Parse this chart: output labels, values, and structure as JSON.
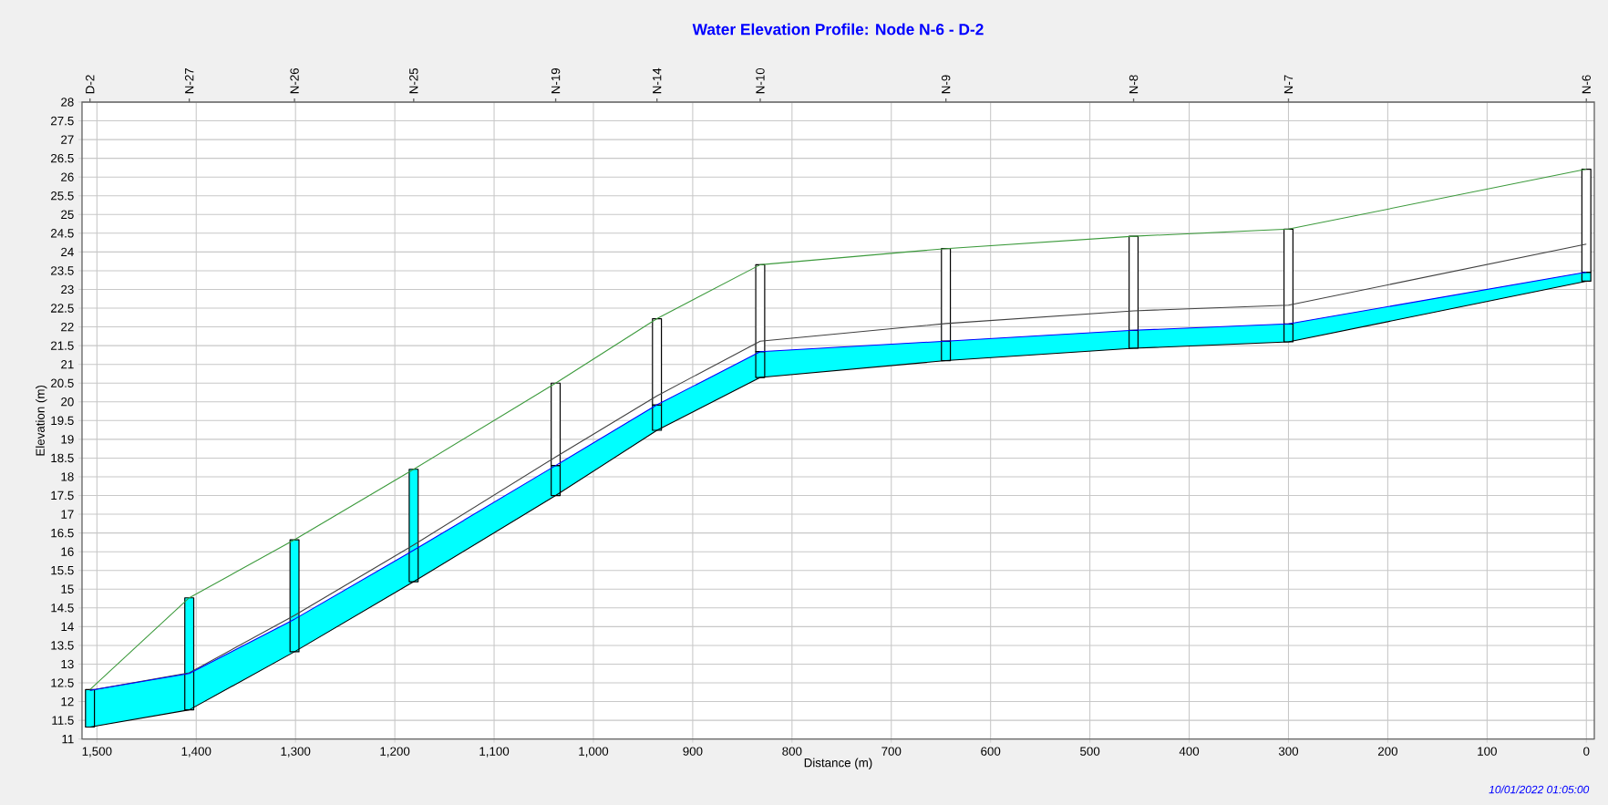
{
  "chart_data": {
    "type": "line",
    "title": "Water Elevation Profile: Node N-6 - D-2",
    "xlabel": "Distance (m)",
    "ylabel": "Elevation (m)",
    "x": [
      1507,
      1407,
      1301,
      1181,
      1038,
      936,
      832,
      645,
      456,
      300,
      0
    ],
    "series": [
      {
        "color": "#3c9a3c",
        "values": [
          12.32,
          14.77,
          16.32,
          18.2,
          20.5,
          22.22,
          23.66,
          24.09,
          24.42,
          24.61,
          26.21
        ]
      },
      {
        "color": "#404040",
        "values": [
          12.3,
          12.77,
          14.3,
          16.18,
          18.53,
          20.16,
          21.62,
          22.09,
          22.43,
          22.58,
          24.21
        ]
      },
      {
        "color": "#0000ff",
        "values": [
          12.3,
          12.75,
          14.2,
          16.04,
          18.3,
          19.92,
          21.34,
          21.62,
          21.91,
          22.08,
          23.46
        ],
        "upper": [
          12.3,
          12.75,
          14.2,
          16.04,
          18.3,
          19.92,
          21.34,
          21.62,
          21.91,
          22.08,
          23.46
        ],
        "lower": [
          11.32,
          11.78,
          13.33,
          15.2,
          17.5,
          19.24,
          20.65,
          21.1,
          21.43,
          21.6,
          23.22
        ]
      },
      {
        "color": "#000000",
        "values": [
          11.32,
          11.78,
          13.33,
          15.2,
          17.5,
          19.24,
          20.65,
          21.1,
          21.43,
          21.6,
          23.22
        ]
      },
      {
        "type": "bar",
        "color": "#00ffff",
        "base": [
          11.32,
          11.78,
          13.33,
          15.2,
          17.5,
          19.24,
          20.65,
          21.1,
          21.43,
          21.6,
          23.22
        ],
        "values": [
          1.0,
          2.99,
          2.99,
          3.0,
          0.8,
          0.68,
          0.69,
          0.52,
          0.48,
          0.48,
          0.24
        ]
      },
      {
        "type": "bar",
        "color": "#ffffff",
        "base": [
          null,
          null,
          null,
          null,
          18.3,
          19.92,
          21.34,
          21.62,
          21.91,
          22.08,
          23.46
        ],
        "values": [
          null,
          null,
          null,
          null,
          2.2,
          2.3,
          2.32,
          2.47,
          2.51,
          2.53,
          2.75
        ]
      }
    ],
    "xlim": [
      1515,
      -8
    ],
    "ylim": [
      11,
      28
    ],
    "xticks": [
      {
        "value": 1500,
        "label": "1,500"
      },
      {
        "value": 1400,
        "label": "1,400"
      },
      {
        "value": 1300,
        "label": "1,300"
      },
      {
        "value": 1200,
        "label": "1,200"
      },
      {
        "value": 1100,
        "label": "1,100"
      },
      {
        "value": 1000,
        "label": "1,000"
      },
      900,
      800,
      700,
      600,
      500,
      400,
      300,
      200,
      100,
      0
    ],
    "yticks": [
      11,
      11.5,
      12,
      12.5,
      13,
      13.5,
      14,
      14.5,
      15,
      15.5,
      16,
      16.5,
      17,
      17.5,
      18,
      18.5,
      19,
      19.5,
      20,
      20.5,
      21,
      21.5,
      22,
      22.5,
      23,
      23.5,
      24,
      24.5,
      25,
      25.5,
      26,
      26.5,
      27,
      27.5,
      28
    ],
    "grid": true,
    "annotations": [
      "10/01/2022 01:05:00",
      "D-2",
      "N-27",
      "N-26",
      "N-25",
      "N-19",
      "N-14",
      "N-10",
      "N-9",
      "N-8",
      "N-7",
      "N-6"
    ]
  }
}
